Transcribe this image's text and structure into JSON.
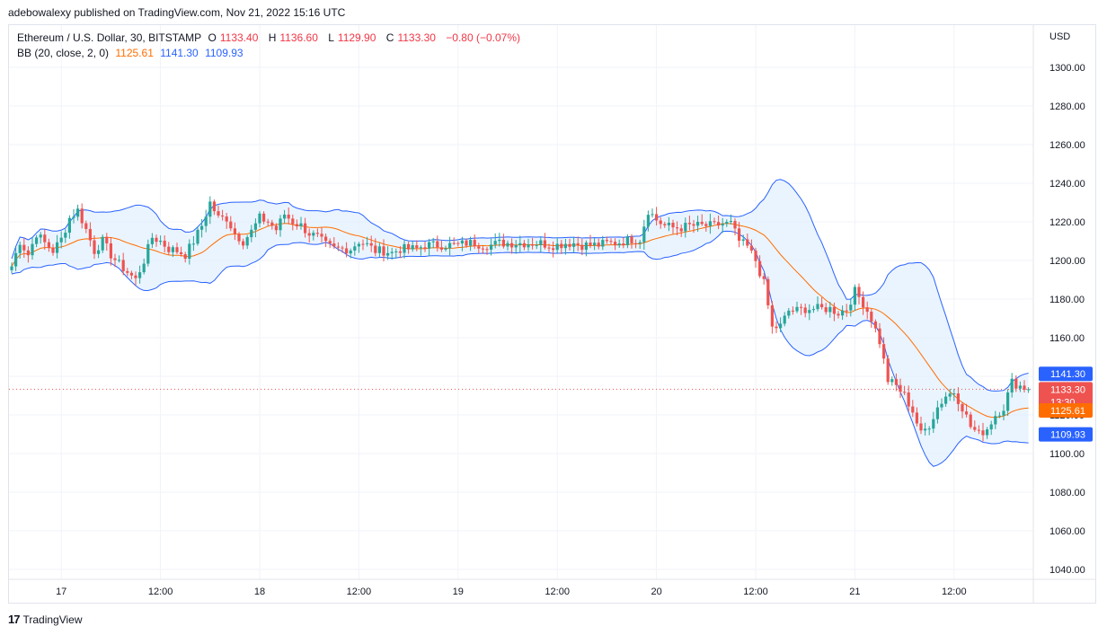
{
  "publisher_line": "adebowalexy published on TradingView.com, Nov 21, 2022 15:16 UTC",
  "legend": {
    "symbol": "Ethereum / U.S. Dollar, 30, BITSTAMP",
    "o_label": "O",
    "o_value": "1133.40",
    "h_label": "H",
    "h_value": "1136.60",
    "l_label": "L",
    "l_value": "1129.90",
    "c_label": "C",
    "c_value": "1133.30",
    "change": "−0.80 (−0.07%)",
    "bb_label": "BB (20, close, 2, 0)",
    "bb_basis": "1125.61",
    "bb_upper": "1141.30",
    "bb_lower": "1109.93"
  },
  "footer": {
    "logo": "17",
    "brand": "TradingView"
  },
  "colors": {
    "up": "#26a69a",
    "down": "#ef5350",
    "basis": "#ff6d00",
    "band": "#2962ff",
    "band_fill": "#e3f0fd",
    "price_line": "#ef5350"
  },
  "chart_data": {
    "type": "candlestick",
    "currency": "USD",
    "ylim": [
      1035,
      1310
    ],
    "y_ticks": [
      "1300.00",
      "1280.00",
      "1260.00",
      "1240.00",
      "1220.00",
      "1200.00",
      "1180.00",
      "1160.00",
      "1140.00",
      "1120.00",
      "1100.00",
      "1080.00",
      "1060.00",
      "1040.00"
    ],
    "y_tick_values": [
      1300,
      1280,
      1260,
      1240,
      1220,
      1200,
      1180,
      1160,
      1140,
      1120,
      1100,
      1080,
      1060,
      1040
    ],
    "x_labels": [
      "17",
      "12:00",
      "18",
      "12:00",
      "19",
      "12:00",
      "20",
      "12:00",
      "21",
      "12:00"
    ],
    "x_label_bars": [
      12,
      36,
      60,
      84,
      108,
      132,
      156,
      180,
      204,
      228
    ],
    "grid": true,
    "last_price": {
      "value": 1133.3,
      "label": "1133.30",
      "countdown": "13:30"
    },
    "badges": [
      {
        "name": "upper-band-badge",
        "value": 1141.3,
        "label": "1141.30",
        "color": "#2962ff"
      },
      {
        "name": "basis-badge",
        "value": 1125.61,
        "label": "1125.61",
        "color": "#ff6d00"
      },
      {
        "name": "lower-band-badge",
        "value": 1109.93,
        "label": "1109.93",
        "color": "#2962ff"
      }
    ],
    "keypoints": [
      [
        0,
        1197
      ],
      [
        2,
        1210
      ],
      [
        4,
        1203
      ],
      [
        6,
        1214
      ],
      [
        8,
        1209
      ],
      [
        10,
        1205
      ],
      [
        12,
        1211
      ],
      [
        14,
        1222
      ],
      [
        16,
        1226
      ],
      [
        18,
        1216
      ],
      [
        20,
        1205
      ],
      [
        22,
        1210
      ],
      [
        24,
        1203
      ],
      [
        26,
        1198
      ],
      [
        28,
        1194
      ],
      [
        30,
        1190
      ],
      [
        32,
        1200
      ],
      [
        34,
        1212
      ],
      [
        36,
        1210
      ],
      [
        38,
        1206
      ],
      [
        40,
        1205
      ],
      [
        42,
        1203
      ],
      [
        44,
        1210
      ],
      [
        46,
        1218
      ],
      [
        48,
        1230
      ],
      [
        50,
        1222
      ],
      [
        52,
        1222
      ],
      [
        54,
        1214
      ],
      [
        56,
        1210
      ],
      [
        58,
        1215
      ],
      [
        60,
        1222
      ],
      [
        62,
        1220
      ],
      [
        64,
        1216
      ],
      [
        66,
        1224
      ],
      [
        68,
        1220
      ],
      [
        70,
        1218
      ],
      [
        72,
        1214
      ],
      [
        74,
        1212
      ],
      [
        76,
        1208
      ],
      [
        78,
        1206
      ],
      [
        80,
        1206
      ],
      [
        82,
        1206
      ],
      [
        84,
        1210
      ],
      [
        86,
        1208
      ],
      [
        88,
        1205
      ],
      [
        90,
        1205
      ],
      [
        92,
        1204
      ],
      [
        94,
        1206
      ],
      [
        96,
        1206
      ],
      [
        98,
        1206
      ],
      [
        100,
        1208
      ],
      [
        102,
        1208
      ],
      [
        104,
        1208
      ],
      [
        106,
        1208
      ],
      [
        108,
        1208
      ],
      [
        110,
        1209
      ],
      [
        112,
        1209
      ],
      [
        114,
        1208
      ],
      [
        116,
        1208
      ],
      [
        118,
        1209
      ],
      [
        120,
        1209
      ],
      [
        122,
        1209
      ],
      [
        124,
        1209
      ],
      [
        126,
        1209
      ],
      [
        128,
        1209
      ],
      [
        130,
        1208
      ],
      [
        132,
        1208
      ],
      [
        134,
        1209
      ],
      [
        136,
        1209
      ],
      [
        138,
        1208
      ],
      [
        140,
        1208
      ],
      [
        142,
        1208
      ],
      [
        144,
        1209
      ],
      [
        146,
        1209
      ],
      [
        148,
        1210
      ],
      [
        150,
        1211
      ],
      [
        152,
        1211
      ],
      [
        154,
        1226
      ],
      [
        156,
        1221
      ],
      [
        158,
        1218
      ],
      [
        160,
        1217
      ],
      [
        162,
        1217
      ],
      [
        164,
        1218
      ],
      [
        166,
        1218
      ],
      [
        168,
        1218
      ],
      [
        170,
        1218
      ],
      [
        172,
        1219
      ],
      [
        174,
        1219
      ],
      [
        176,
        1210
      ],
      [
        178,
        1207
      ],
      [
        180,
        1200
      ],
      [
        182,
        1188
      ],
      [
        184,
        1165
      ],
      [
        186,
        1166
      ],
      [
        188,
        1174
      ],
      [
        190,
        1174
      ],
      [
        192,
        1175
      ],
      [
        194,
        1175
      ],
      [
        196,
        1175
      ],
      [
        198,
        1175
      ],
      [
        200,
        1173
      ],
      [
        202,
        1175
      ],
      [
        204,
        1184
      ],
      [
        206,
        1178
      ],
      [
        208,
        1170
      ],
      [
        210,
        1158
      ],
      [
        212,
        1138
      ],
      [
        214,
        1135
      ],
      [
        216,
        1130
      ],
      [
        218,
        1122
      ],
      [
        220,
        1110
      ],
      [
        222,
        1115
      ],
      [
        224,
        1124
      ],
      [
        226,
        1130
      ],
      [
        228,
        1132
      ],
      [
        230,
        1124
      ],
      [
        232,
        1114
      ],
      [
        234,
        1110
      ],
      [
        236,
        1113
      ],
      [
        238,
        1120
      ],
      [
        240,
        1124
      ],
      [
        242,
        1137
      ],
      [
        244,
        1135
      ],
      [
        246,
        1133.3
      ]
    ]
  }
}
